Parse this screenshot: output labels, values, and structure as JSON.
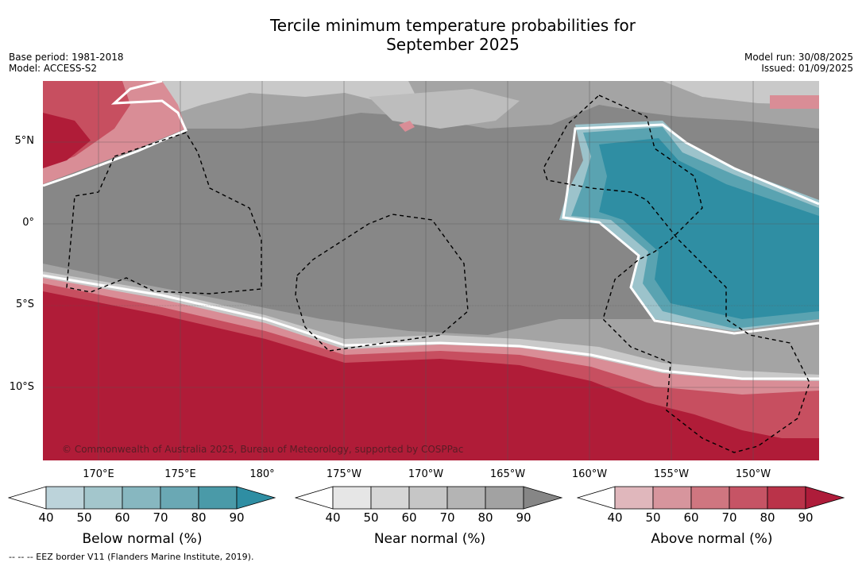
{
  "title_line1": "Tercile minimum temperature probabilities for",
  "title_line2": "September 2025",
  "base_period": "Base period: 1981-2018",
  "model": "Model: ACCESS-S2",
  "model_run": "Model run: 30/08/2025",
  "issued": "Issued: 01/09/2025",
  "lat_labels": [
    "5°N",
    "0°",
    "5°S",
    "10°S"
  ],
  "lon_labels": [
    "170°E",
    "175°E",
    "180°",
    "175°W",
    "170°W",
    "165°W",
    "160°W",
    "155°W",
    "150°W"
  ],
  "credit": "© Commonwealth of Australia 2025, Bureau of Meteorology, supported by COSPPac",
  "colorbars": [
    {
      "title": "Below normal (%)",
      "ticks": [
        "40",
        "50",
        "60",
        "70",
        "80",
        "90"
      ],
      "colors": [
        "#ffffff",
        "#bcd3da",
        "#a3c6cc",
        "#87b7c0",
        "#6aa8b4",
        "#4a9aa8",
        "#2f8ea3"
      ]
    },
    {
      "title": "Near normal (%)",
      "ticks": [
        "40",
        "50",
        "60",
        "70",
        "80",
        "90"
      ],
      "colors": [
        "#ffffff",
        "#e6e6e6",
        "#d6d6d6",
        "#c6c6c6",
        "#b4b4b4",
        "#a2a2a2",
        "#868686"
      ]
    },
    {
      "title": "Above normal (%)",
      "ticks": [
        "40",
        "50",
        "60",
        "70",
        "80",
        "90"
      ],
      "colors": [
        "#ffffff",
        "#e0b7bc",
        "#d7959d",
        "#cf7680",
        "#c65465",
        "#ba3349",
        "#ae1c3a"
      ]
    }
  ],
  "footnote": "-- -- -- EEZ border V11 (Flanders Marine Institute, 2019).",
  "map_colors": {
    "above_high": "#b01c38",
    "above_mid": "#c74f60",
    "above_low": "#d98d96",
    "near_high": "#878787",
    "near_mid": "#a4a4a4",
    "near_low": "#c9c9c9",
    "below_high": "#2f8ea3",
    "below_mid": "#5aa3b1",
    "below_low": "#9cc3cb"
  }
}
